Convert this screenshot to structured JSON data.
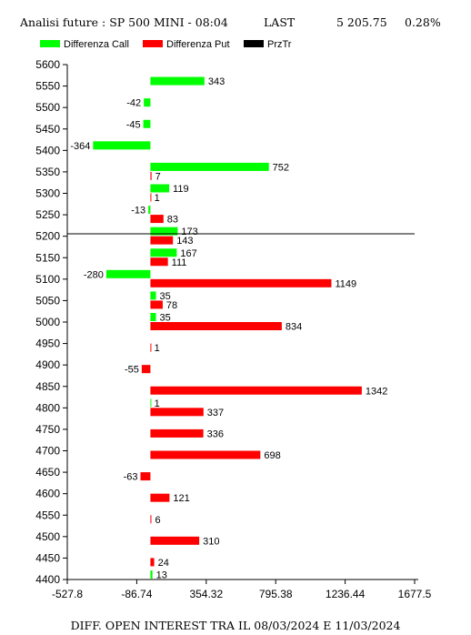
{
  "header": {
    "title": "Analisi future : SP 500 MINI - 08:04",
    "last_label": "LAST",
    "last_value": "5 205.75",
    "change": "0.28%"
  },
  "footer": {
    "caption": "DIFF. OPEN INTEREST TRA IL 08/03/2024 E 11/03/2024"
  },
  "chart_data": {
    "type": "bar",
    "orientation": "horizontal",
    "legend": [
      {
        "name": "Differenza Call",
        "color": "#00ff00"
      },
      {
        "name": "Differenza Put",
        "color": "#ff0000"
      },
      {
        "name": "PrzTr",
        "color": "#000000"
      }
    ],
    "x_ticks": [
      "-527.8",
      "-86.74",
      "354.32",
      "795.38",
      "1236.44",
      "1677.5"
    ],
    "xlim": [
      -527.8,
      1677.5
    ],
    "ylim": [
      4400,
      5600
    ],
    "y_ticks": [
      4400,
      4450,
      4500,
      4550,
      4600,
      4650,
      4700,
      4750,
      4800,
      4850,
      4900,
      4950,
      5000,
      5050,
      5100,
      5150,
      5200,
      5250,
      5300,
      5350,
      5400,
      5450,
      5500,
      5550,
      5600
    ],
    "price_line": 5205.75,
    "series": [
      {
        "name": "Differenza Call",
        "color": "#00ff00",
        "points": [
          {
            "strike": 5550,
            "value": 343
          },
          {
            "strike": 5500,
            "value": -42
          },
          {
            "strike": 5450,
            "value": -45
          },
          {
            "strike": 5400,
            "value": -364
          },
          {
            "strike": 5350,
            "value": 752
          },
          {
            "strike": 5300,
            "value": 119
          },
          {
            "strike": 5250,
            "value": -13
          },
          {
            "strike": 5200,
            "value": 173
          },
          {
            "strike": 5150,
            "value": 167
          },
          {
            "strike": 5100,
            "value": -280
          },
          {
            "strike": 5050,
            "value": 35
          },
          {
            "strike": 5000,
            "value": 35
          },
          {
            "strike": 4800,
            "value": 1
          },
          {
            "strike": 4400,
            "value": 13
          }
        ]
      },
      {
        "name": "Differenza Put",
        "color": "#ff0000",
        "points": [
          {
            "strike": 5350,
            "value": 7
          },
          {
            "strike": 5300,
            "value": 1
          },
          {
            "strike": 5250,
            "value": 83
          },
          {
            "strike": 5200,
            "value": 143
          },
          {
            "strike": 5150,
            "value": 111
          },
          {
            "strike": 5100,
            "value": 1149
          },
          {
            "strike": 5050,
            "value": 78
          },
          {
            "strike": 5000,
            "value": 834
          },
          {
            "strike": 4950,
            "value": 1
          },
          {
            "strike": 4900,
            "value": -55
          },
          {
            "strike": 4850,
            "value": 1342
          },
          {
            "strike": 4800,
            "value": 337
          },
          {
            "strike": 4750,
            "value": 336
          },
          {
            "strike": 4700,
            "value": 698
          },
          {
            "strike": 4650,
            "value": -63
          },
          {
            "strike": 4600,
            "value": 121
          },
          {
            "strike": 4550,
            "value": 6
          },
          {
            "strike": 4500,
            "value": 310
          },
          {
            "strike": 4450,
            "value": 24
          }
        ]
      }
    ]
  }
}
